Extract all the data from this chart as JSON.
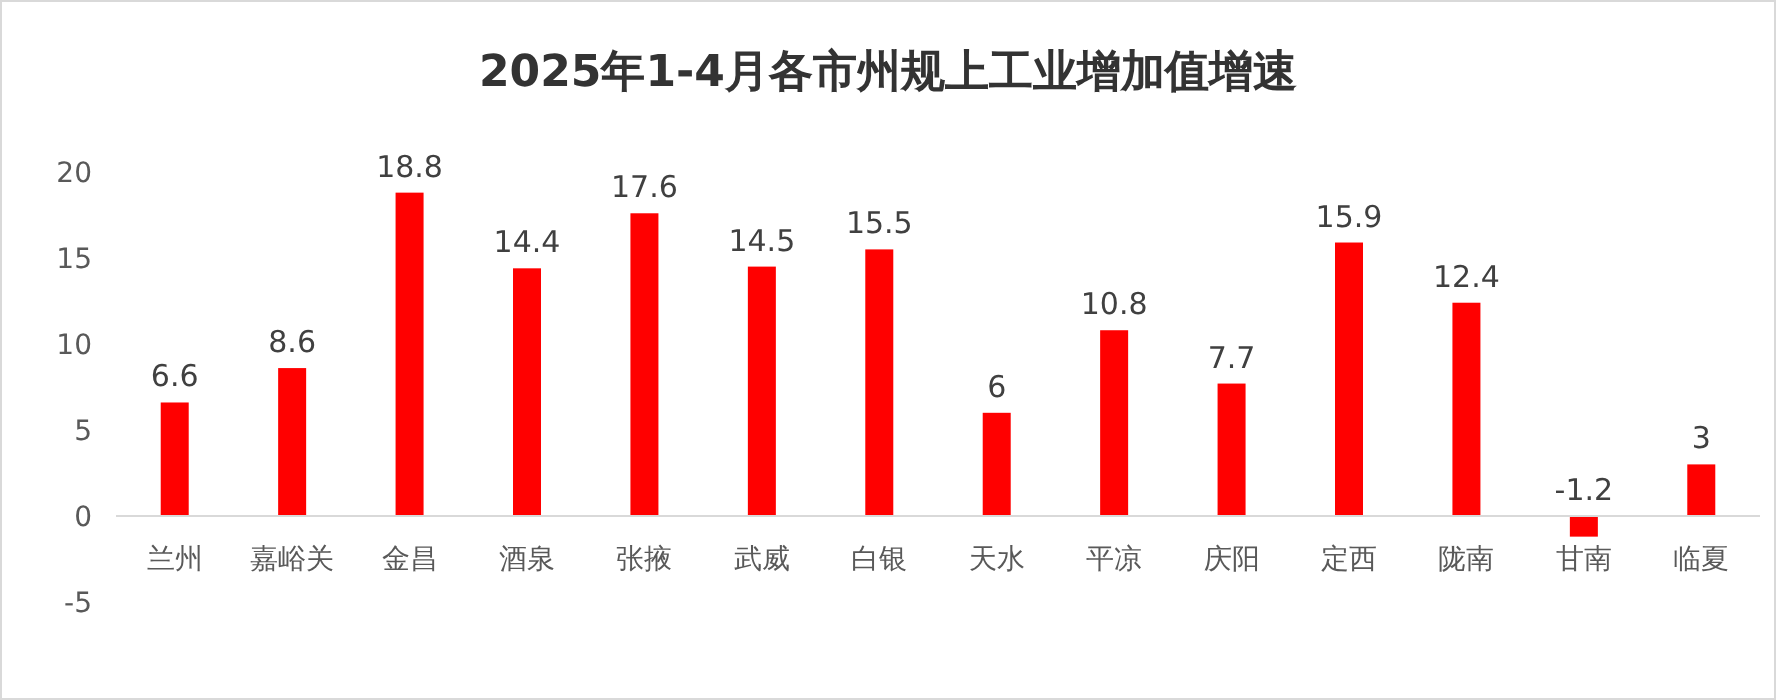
{
  "chart_data": {
    "type": "bar",
    "title": "2025年1-4月各市州规上工业增加值增速",
    "categories": [
      "兰州",
      "嘉峪关",
      "金昌",
      "酒泉",
      "张掖",
      "武威",
      "白银",
      "天水",
      "平凉",
      "庆阳",
      "定西",
      "陇南",
      "甘南",
      "临夏"
    ],
    "values": [
      6.6,
      8.6,
      18.8,
      14.4,
      17.6,
      14.5,
      15.5,
      6,
      10.8,
      7.7,
      15.9,
      12.4,
      -1.2,
      3
    ],
    "color": "#ff0000",
    "ylim": [
      -5,
      20
    ],
    "yticks": [
      -5,
      0,
      5,
      10,
      15,
      20
    ],
    "data_labels": true,
    "grid": false
  }
}
